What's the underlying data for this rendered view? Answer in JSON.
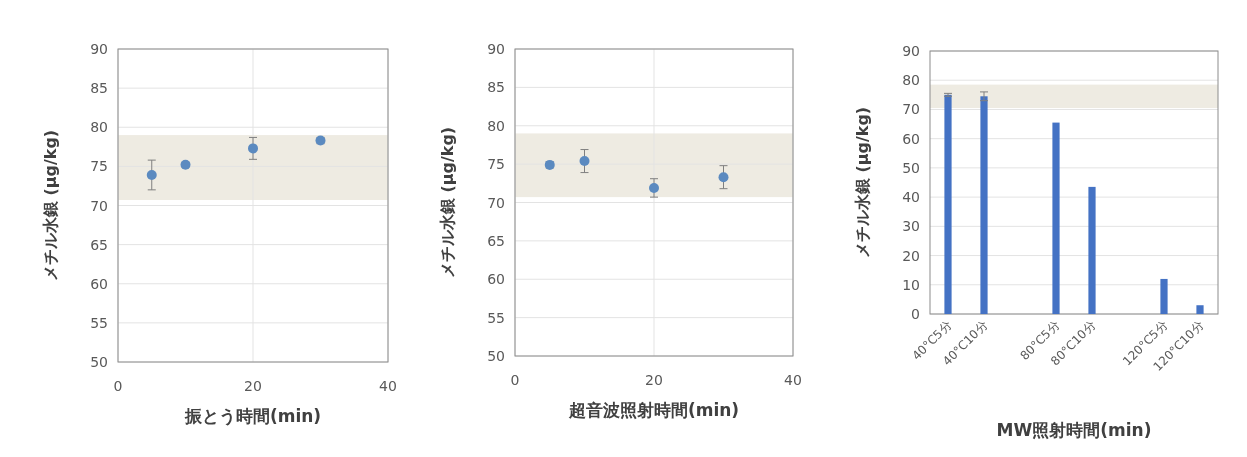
{
  "chart_data": [
    {
      "type": "scatter",
      "xlabel": "振とう時間(min)",
      "ylabel": "メチル水銀 (µg/kg)",
      "x": [
        5,
        10,
        20,
        30
      ],
      "values": [
        73.9,
        75.2,
        77.3,
        78.3
      ],
      "errors": [
        1.9,
        0.3,
        1.4,
        0.4
      ],
      "color": "#5b8ac0",
      "marker": "circle",
      "xlim": [
        0,
        40
      ],
      "xticks": [
        0,
        20,
        40
      ],
      "ylim": [
        50,
        90
      ],
      "yticks": [
        50,
        55,
        60,
        65,
        70,
        75,
        80,
        85,
        90
      ],
      "grid": true,
      "bands": [
        {
          "axis": "y",
          "from": 70.7,
          "to": 79,
          "color": "#eeebe2"
        }
      ]
    },
    {
      "type": "scatter",
      "xlabel": "超音波照射時間(min)",
      "ylabel": "メチル水銀 (µg/kg)",
      "x": [
        5,
        10,
        20,
        30
      ],
      "values": [
        74.9,
        75.4,
        71.9,
        73.3
      ],
      "errors": [
        0.4,
        1.5,
        1.2,
        1.5
      ],
      "color": "#5b8ac0",
      "marker": "circle",
      "xlim": [
        0,
        40
      ],
      "xticks": [
        0,
        20,
        40
      ],
      "ylim": [
        50,
        90
      ],
      "yticks": [
        50,
        55,
        60,
        65,
        70,
        75,
        80,
        85,
        90
      ],
      "grid": true,
      "bands": [
        {
          "axis": "y",
          "from": 70.7,
          "to": 79,
          "color": "#eeebe2"
        }
      ]
    },
    {
      "type": "bar",
      "xlabel": "MW照射時間(min)",
      "ylabel": "メチル水銀 (µg/kg)",
      "categories": [
        "40°C5分",
        "40°C10分",
        null,
        "80°C5分",
        "80°C10分",
        null,
        "120°C5分",
        "120°C10分"
      ],
      "values": [
        75,
        74.5,
        null,
        65.5,
        43.5,
        null,
        12,
        3
      ],
      "errors": [
        0.5,
        1.5,
        null,
        null,
        null,
        null,
        null,
        null
      ],
      "color": "#4472c4",
      "ylim": [
        0,
        90
      ],
      "yticks": [
        0,
        10,
        20,
        30,
        40,
        50,
        60,
        70,
        80,
        90
      ],
      "grid": "y",
      "bands": [
        {
          "axis": "y",
          "from": 70.5,
          "to": 78.5,
          "color": "#eeebe2"
        }
      ]
    }
  ]
}
